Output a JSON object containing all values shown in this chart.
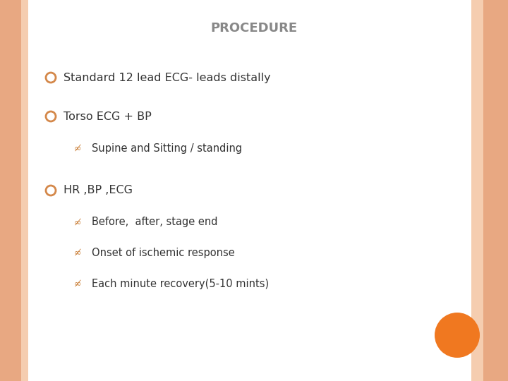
{
  "title": "Procedure",
  "title_color": "#888888",
  "background_color": "#ffffff",
  "border_color_outer": "#e8a882",
  "border_color_inner": "#f5cdb0",
  "bullet_color": "#d4884a",
  "sub_bullet_color": "#c87a30",
  "orange_circle_color": "#f07820",
  "items": [
    {
      "level": 1,
      "text": "Standard 12 lead ECG- leads distally"
    },
    {
      "level": 1,
      "text": "Torso ECG + BP"
    },
    {
      "level": 2,
      "text": "Supine and Sitting / standing"
    },
    {
      "level": 1,
      "text": "HR ,BP ,ECG"
    },
    {
      "level": 2,
      "text": "Before,  after, stage end"
    },
    {
      "level": 2,
      "text": "Onset of ischemic response"
    },
    {
      "level": 2,
      "text": "Each minute recovery(5-10 mints)"
    }
  ],
  "text_color": "#333333",
  "font_size_title": 13,
  "font_size_body": 11.5,
  "font_size_sub": 10.5
}
